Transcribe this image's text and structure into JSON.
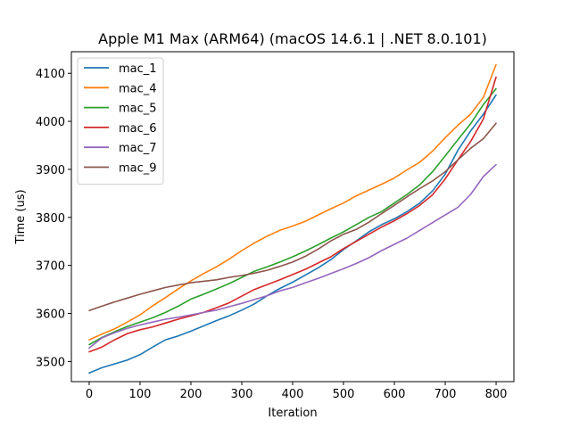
{
  "chart_data": {
    "type": "line",
    "title": "Apple M1 Max (ARM64) (macOS 14.6.1 | .NET 8.0.101)",
    "xlabel": "Iteration",
    "ylabel": "Time (us)",
    "xlim": [
      -35,
      835
    ],
    "ylim": [
      3458,
      4145
    ],
    "xticks": [
      0,
      100,
      200,
      300,
      400,
      500,
      600,
      700,
      800
    ],
    "yticks": [
      3500,
      3600,
      3700,
      3800,
      3900,
      4000,
      4100
    ],
    "grid": false,
    "legend_position": "upper-left",
    "x": [
      0,
      25,
      50,
      75,
      100,
      125,
      150,
      175,
      200,
      225,
      250,
      275,
      300,
      325,
      350,
      375,
      400,
      425,
      450,
      475,
      500,
      525,
      550,
      575,
      600,
      625,
      650,
      675,
      700,
      725,
      750,
      775,
      800
    ],
    "series": [
      {
        "name": "mac_1",
        "color": "#1f77b4",
        "values": [
          3476,
          3487,
          3495,
          3503,
          3514,
          3530,
          3545,
          3553,
          3563,
          3574,
          3585,
          3595,
          3607,
          3620,
          3637,
          3652,
          3665,
          3680,
          3695,
          3712,
          3733,
          3751,
          3770,
          3785,
          3797,
          3812,
          3830,
          3855,
          3890,
          3940,
          3980,
          4015,
          4055
        ]
      },
      {
        "name": "mac_4",
        "color": "#ff7f0e",
        "values": [
          3545,
          3557,
          3568,
          3582,
          3597,
          3616,
          3633,
          3651,
          3668,
          3683,
          3697,
          3713,
          3731,
          3747,
          3761,
          3773,
          3782,
          3792,
          3805,
          3818,
          3830,
          3845,
          3857,
          3869,
          3882,
          3899,
          3915,
          3938,
          3966,
          3992,
          4015,
          4050,
          4118
        ]
      },
      {
        "name": "mac_5",
        "color": "#2ca02c",
        "values": [
          3535,
          3550,
          3562,
          3573,
          3582,
          3591,
          3602,
          3615,
          3630,
          3640,
          3651,
          3662,
          3675,
          3688,
          3697,
          3707,
          3718,
          3730,
          3743,
          3757,
          3770,
          3785,
          3800,
          3812,
          3830,
          3848,
          3868,
          3895,
          3928,
          3962,
          3995,
          4035,
          4068
        ]
      },
      {
        "name": "mac_6",
        "color": "#d62728",
        "values": [
          3520,
          3530,
          3545,
          3558,
          3566,
          3572,
          3580,
          3588,
          3595,
          3602,
          3612,
          3622,
          3636,
          3650,
          3660,
          3670,
          3681,
          3692,
          3705,
          3718,
          3735,
          3750,
          3765,
          3780,
          3793,
          3808,
          3825,
          3847,
          3880,
          3920,
          3958,
          4005,
          4092
        ]
      },
      {
        "name": "mac_7",
        "color": "#9467bd",
        "values": [
          3528,
          3549,
          3560,
          3569,
          3576,
          3582,
          3588,
          3592,
          3597,
          3602,
          3607,
          3614,
          3621,
          3629,
          3637,
          3647,
          3654,
          3664,
          3673,
          3683,
          3693,
          3704,
          3716,
          3731,
          3744,
          3757,
          3773,
          3789,
          3805,
          3821,
          3848,
          3885,
          3910
        ]
      },
      {
        "name": "mac_9",
        "color": "#8c564b",
        "values": [
          3606,
          3615,
          3624,
          3632,
          3640,
          3647,
          3654,
          3659,
          3664,
          3667,
          3670,
          3675,
          3679,
          3684,
          3690,
          3698,
          3707,
          3719,
          3734,
          3751,
          3765,
          3775,
          3790,
          3808,
          3825,
          3843,
          3860,
          3876,
          3895,
          3920,
          3944,
          3964,
          3996
        ]
      }
    ]
  }
}
